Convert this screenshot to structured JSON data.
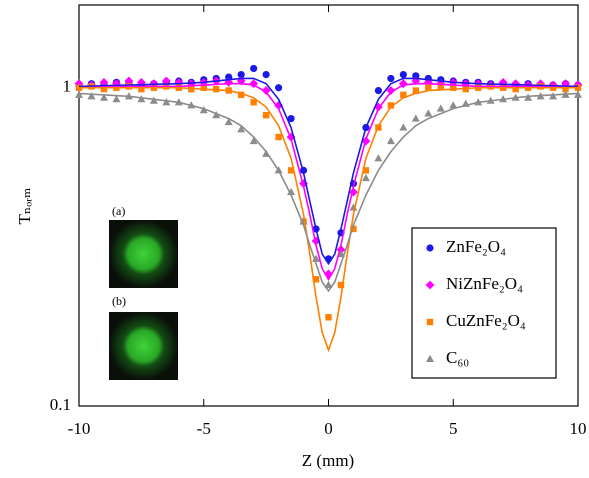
{
  "chart_data": {
    "type": "scatter",
    "x_label": "Z (mm)",
    "y_label": "Tₙₒᵣₘ",
    "xlim": [
      -10,
      10
    ],
    "xticks": [
      -10,
      -5,
      0,
      5,
      10
    ],
    "ylim": [
      0.1,
      1.82
    ],
    "yticks": [
      0.1,
      1
    ],
    "log_y": true,
    "legend": "lower right",
    "insets": [
      {
        "label": "(a)"
      },
      {
        "label": "(b)"
      }
    ],
    "series": [
      {
        "name": "ZnFe₂O₄",
        "color": "#1a1ae6",
        "marker": "circle",
        "x": [
          -10,
          -9.5,
          -9,
          -8.5,
          -8,
          -7.5,
          -7,
          -6.5,
          -6,
          -5.5,
          -5,
          -4.5,
          -4,
          -3.5,
          -3,
          -2.5,
          -2,
          -1.5,
          -1,
          -0.5,
          0,
          0.5,
          1,
          1.5,
          2,
          2.5,
          3,
          3.5,
          4,
          4.5,
          5,
          5.5,
          6,
          6.5,
          7,
          7.5,
          8,
          8.5,
          9,
          9.5,
          10
        ],
        "values": [
          1.02,
          1.03,
          1.02,
          1.04,
          1.03,
          1.02,
          1.03,
          1.04,
          1.05,
          1.04,
          1.06,
          1.07,
          1.08,
          1.1,
          1.15,
          1.1,
          1.0,
          0.8,
          0.55,
          0.36,
          0.29,
          0.35,
          0.5,
          0.75,
          0.98,
          1.07,
          1.1,
          1.09,
          1.07,
          1.06,
          1.05,
          1.04,
          1.04,
          1.03,
          1.03,
          1.02,
          1.03,
          1.02,
          1.02,
          1.03,
          1.02
        ],
        "fit": {
          "x": [
            -10,
            -8,
            -6,
            -5,
            -4,
            -3.5,
            -3,
            -2.5,
            -2,
            -1.5,
            -1,
            -0.75,
            -0.5,
            -0.25,
            0,
            0.25,
            0.5,
            0.75,
            1,
            1.5,
            2,
            2.5,
            3,
            3.5,
            4,
            5,
            6,
            8,
            10
          ],
          "values": [
            1.01,
            1.02,
            1.03,
            1.04,
            1.06,
            1.07,
            1.07,
            1.03,
            0.92,
            0.75,
            0.54,
            0.44,
            0.36,
            0.3,
            0.28,
            0.3,
            0.36,
            0.44,
            0.54,
            0.75,
            0.92,
            1.03,
            1.07,
            1.07,
            1.06,
            1.04,
            1.03,
            1.02,
            1.01
          ]
        }
      },
      {
        "name": "NiZnFe₂O₄",
        "color": "#ff00ff",
        "marker": "diamond",
        "x": [
          -10,
          -9.5,
          -9,
          -8.5,
          -8,
          -7.5,
          -7,
          -6.5,
          -6,
          -5.5,
          -5,
          -4.5,
          -4,
          -3.5,
          -3,
          -2.5,
          -2,
          -1.5,
          -1,
          -0.5,
          0,
          0.5,
          1,
          1.5,
          2,
          2.5,
          3,
          3.5,
          4,
          4.5,
          5,
          5.5,
          6,
          6.5,
          7,
          7.5,
          8,
          8.5,
          9,
          9.5,
          10
        ],
        "values": [
          1.03,
          1.02,
          1.04,
          1.03,
          1.05,
          1.04,
          1.03,
          1.05,
          1.04,
          1.03,
          1.04,
          1.05,
          1.04,
          1.05,
          1.03,
          0.98,
          0.88,
          0.7,
          0.5,
          0.33,
          0.26,
          0.31,
          0.47,
          0.68,
          0.87,
          0.98,
          1.03,
          1.05,
          1.04,
          1.03,
          1.04,
          1.03,
          1.03,
          1.02,
          1.04,
          1.03,
          1.02,
          1.03,
          1.02,
          1.03,
          1.02
        ],
        "fit": {
          "x": [
            -10,
            -8,
            -6,
            -5,
            -4,
            -3.5,
            -3,
            -2.5,
            -2,
            -1.5,
            -1,
            -0.75,
            -0.5,
            -0.25,
            0,
            0.25,
            0.5,
            0.75,
            1,
            1.5,
            2,
            2.5,
            3,
            3.5,
            4,
            5,
            6,
            8,
            10
          ],
          "values": [
            1.0,
            1.01,
            1.01,
            1.02,
            1.03,
            1.03,
            1.02,
            0.97,
            0.86,
            0.69,
            0.49,
            0.4,
            0.32,
            0.27,
            0.25,
            0.27,
            0.32,
            0.4,
            0.49,
            0.69,
            0.86,
            0.97,
            1.02,
            1.03,
            1.03,
            1.02,
            1.01,
            1.01,
            1.0
          ]
        }
      },
      {
        "name": "CuZnFe₂O₄",
        "color": "#ff8000",
        "marker": "square",
        "x": [
          -10,
          -9.5,
          -9,
          -8.5,
          -8,
          -7.5,
          -7,
          -6.5,
          -6,
          -5.5,
          -5,
          -4.5,
          -4,
          -3.5,
          -3,
          -2.5,
          -2,
          -1.5,
          -1,
          -0.5,
          0,
          0.5,
          1,
          1.5,
          2,
          2.5,
          3,
          3.5,
          4,
          4.5,
          5,
          5.5,
          6,
          6.5,
          7,
          7.5,
          8,
          8.5,
          9,
          9.5,
          10
        ],
        "values": [
          1.0,
          1.01,
          0.99,
          1.0,
          1.01,
          0.99,
          1.0,
          1.01,
          1.0,
          0.99,
          1.0,
          0.99,
          0.98,
          0.95,
          0.9,
          0.82,
          0.7,
          0.55,
          0.38,
          0.25,
          0.19,
          0.24,
          0.36,
          0.55,
          0.75,
          0.88,
          0.95,
          0.98,
          1.0,
          1.01,
          1.0,
          0.99,
          1.0,
          1.01,
          1.0,
          0.99,
          1.0,
          1.01,
          1.0,
          0.99,
          1.0
        ],
        "fit": {
          "x": [
            -10,
            -8,
            -6,
            -5,
            -4,
            -3.5,
            -3,
            -2.5,
            -2,
            -1.5,
            -1,
            -0.75,
            -0.5,
            -0.25,
            0,
            0.25,
            0.5,
            0.75,
            1,
            1.5,
            2,
            2.5,
            3,
            3.5,
            4,
            5,
            6,
            8,
            10
          ],
          "values": [
            1.0,
            1.0,
            1.0,
            0.99,
            0.98,
            0.96,
            0.93,
            0.87,
            0.76,
            0.6,
            0.4,
            0.3,
            0.22,
            0.17,
            0.15,
            0.17,
            0.22,
            0.3,
            0.4,
            0.6,
            0.76,
            0.87,
            0.93,
            0.96,
            0.98,
            0.99,
            1.0,
            1.0,
            1.0
          ]
        }
      },
      {
        "name": "C₆₀",
        "color": "#8c8c8c",
        "marker": "triangle",
        "x": [
          -10,
          -9.5,
          -9,
          -8.5,
          -8,
          -7.5,
          -7,
          -6.5,
          -6,
          -5.5,
          -5,
          -4.5,
          -4,
          -3.5,
          -3,
          -2.5,
          -2,
          -1.5,
          -1,
          -0.5,
          0,
          0.5,
          1,
          1.5,
          2,
          2.5,
          3,
          3.5,
          4,
          4.5,
          5,
          5.5,
          6,
          6.5,
          7,
          7.5,
          8,
          8.5,
          9,
          9.5,
          10
        ],
        "values": [
          0.95,
          0.94,
          0.93,
          0.92,
          0.94,
          0.92,
          0.91,
          0.9,
          0.9,
          0.88,
          0.85,
          0.82,
          0.78,
          0.74,
          0.68,
          0.62,
          0.55,
          0.47,
          0.38,
          0.29,
          0.24,
          0.3,
          0.42,
          0.52,
          0.6,
          0.68,
          0.75,
          0.8,
          0.83,
          0.86,
          0.88,
          0.89,
          0.9,
          0.91,
          0.92,
          0.93,
          0.93,
          0.94,
          0.94,
          0.95,
          0.95
        ],
        "fit": {
          "x": [
            -10,
            -8,
            -6,
            -5,
            -4,
            -3.5,
            -3,
            -2.5,
            -2,
            -1.5,
            -1,
            -0.75,
            -0.5,
            -0.25,
            0,
            0.25,
            0.5,
            0.75,
            1,
            1.5,
            2,
            2.5,
            3,
            3.5,
            4,
            5,
            6,
            8,
            10
          ],
          "values": [
            0.96,
            0.94,
            0.9,
            0.86,
            0.8,
            0.76,
            0.7,
            0.63,
            0.55,
            0.46,
            0.37,
            0.32,
            0.28,
            0.245,
            0.23,
            0.245,
            0.28,
            0.32,
            0.37,
            0.46,
            0.55,
            0.63,
            0.7,
            0.76,
            0.8,
            0.86,
            0.9,
            0.94,
            0.96
          ]
        }
      }
    ]
  }
}
